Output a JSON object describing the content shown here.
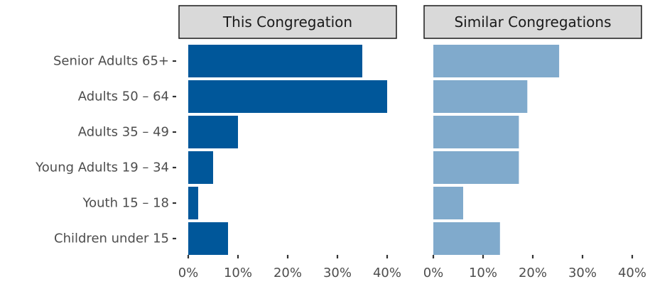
{
  "chart_data": {
    "type": "bar",
    "orientation": "horizontal",
    "categories": [
      "Senior Adults 65+",
      "Adults 50 – 64",
      "Adults 35 – 49",
      "Young Adults 19 – 34",
      "Youth 15 – 18",
      "Children under 15"
    ],
    "xlim": [
      0,
      40
    ],
    "x_ticks": [
      "0%",
      "10%",
      "20%",
      "30%",
      "40%"
    ],
    "grid": false,
    "panels": [
      {
        "title": "This Congregation",
        "color": "#00579a",
        "values": [
          35,
          40,
          10,
          5,
          2,
          8
        ]
      },
      {
        "title": "Similar Congregations",
        "color": "#80aacc",
        "values": [
          25.3,
          18.9,
          17.2,
          17.2,
          6,
          13.4
        ]
      }
    ]
  }
}
